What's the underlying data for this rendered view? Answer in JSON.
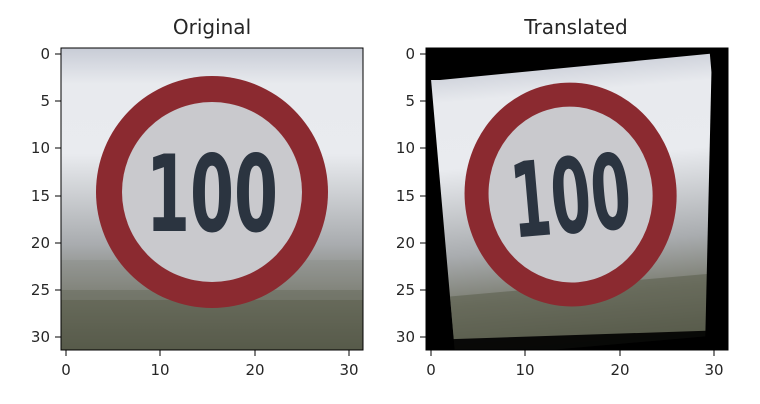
{
  "panels": [
    {
      "title": "Original",
      "x_ticks": [
        "0",
        "10",
        "20",
        "30"
      ],
      "y_ticks": [
        "0",
        "5",
        "10",
        "15",
        "20",
        "25",
        "30"
      ],
      "sign_text": "100"
    },
    {
      "title": "Translated",
      "x_ticks": [
        "0",
        "10",
        "20",
        "30"
      ],
      "y_ticks": [
        "0",
        "5",
        "10",
        "15",
        "20",
        "25",
        "30"
      ],
      "sign_text": "100"
    }
  ],
  "colors": {
    "sign_ring": "#8b2a30",
    "sign_face": "#c9c9cd",
    "digits": "#2b3440",
    "sky": "#d8dbe2",
    "ground": "#5e604f",
    "border_fill": "#000000"
  }
}
